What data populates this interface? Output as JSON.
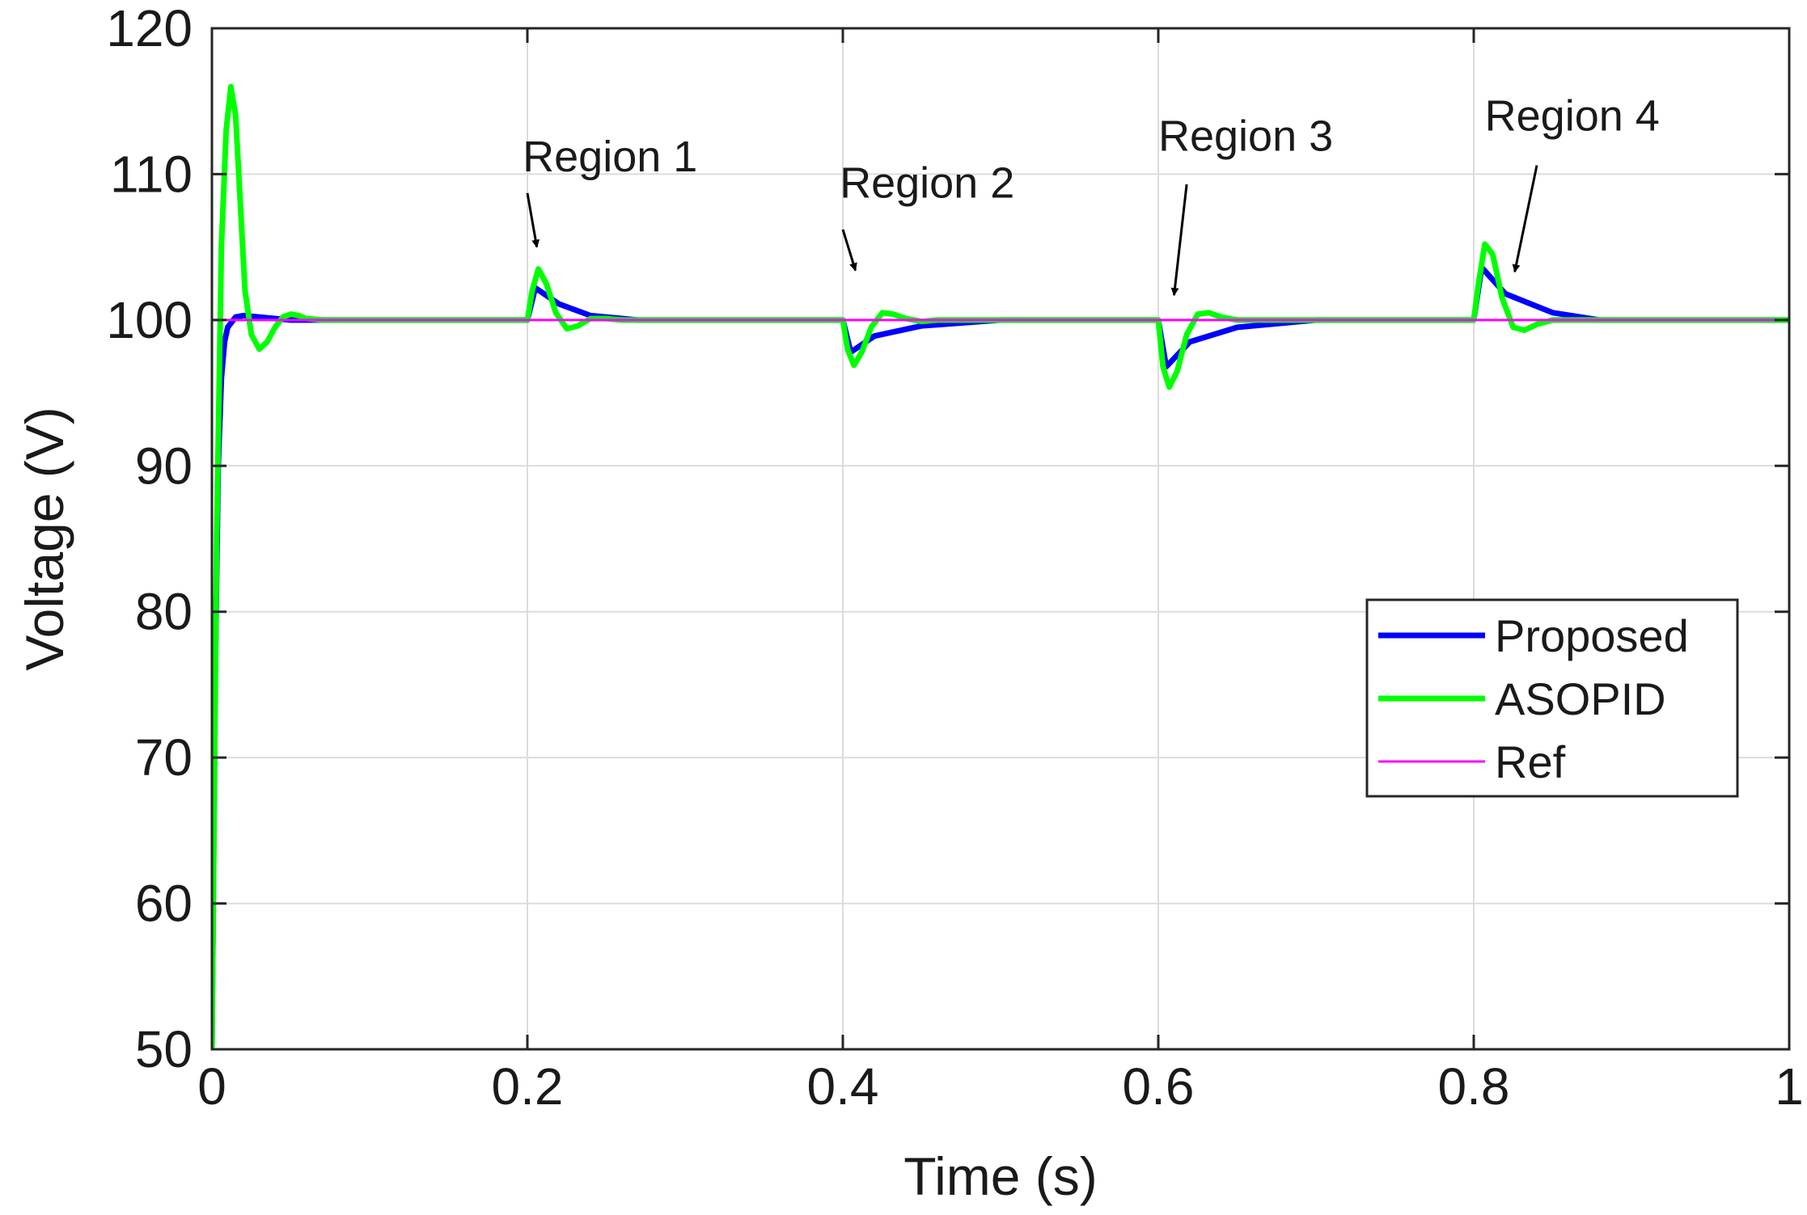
{
  "chart_data": {
    "type": "line",
    "xlabel": "Time (s)",
    "ylabel": "Voltage (V)",
    "xlim": [
      0,
      1
    ],
    "ylim": [
      50,
      120
    ],
    "grid": true,
    "x_ticks": [
      0,
      0.2,
      0.4,
      0.6,
      0.8,
      1
    ],
    "x_tick_labels": [
      "0",
      "0.2",
      "0.4",
      "0.6",
      "0.8",
      "1"
    ],
    "y_ticks": [
      50,
      60,
      70,
      80,
      90,
      100,
      110,
      120
    ],
    "y_tick_labels": [
      "50",
      "60",
      "70",
      "80",
      "90",
      "100",
      "110",
      "120"
    ],
    "legend_position": "right",
    "series": [
      {
        "name": "Proposed",
        "color": "#0000ff",
        "x": [
          0,
          0.002,
          0.004,
          0.006,
          0.008,
          0.01,
          0.015,
          0.02,
          0.03,
          0.05,
          0.08,
          0.2,
          0.2,
          0.205,
          0.22,
          0.24,
          0.27,
          0.4,
          0.4,
          0.405,
          0.42,
          0.45,
          0.5,
          0.6,
          0.6,
          0.605,
          0.62,
          0.65,
          0.7,
          0.8,
          0.8,
          0.805,
          0.82,
          0.85,
          0.88,
          1
        ],
        "values": [
          50,
          75,
          90,
          96,
          98.5,
          99.5,
          100.2,
          100.3,
          100.2,
          100,
          100,
          100,
          100,
          102.2,
          101.1,
          100.3,
          100,
          100,
          100,
          97.8,
          98.9,
          99.6,
          100,
          100,
          100,
          96.8,
          98.5,
          99.5,
          100,
          100,
          100,
          103.6,
          101.8,
          100.5,
          100,
          100
        ]
      },
      {
        "name": "ASOPID",
        "color": "#00ff00",
        "x": [
          0,
          0.003,
          0.006,
          0.009,
          0.012,
          0.015,
          0.018,
          0.021,
          0.025,
          0.03,
          0.035,
          0.04,
          0.045,
          0.05,
          0.055,
          0.06,
          0.07,
          0.08,
          0.2,
          0.2,
          0.203,
          0.207,
          0.212,
          0.218,
          0.225,
          0.232,
          0.24,
          0.25,
          0.26,
          0.4,
          0.4,
          0.403,
          0.407,
          0.412,
          0.418,
          0.425,
          0.432,
          0.44,
          0.45,
          0.46,
          0.6,
          0.6,
          0.603,
          0.607,
          0.612,
          0.618,
          0.625,
          0.632,
          0.64,
          0.65,
          0.66,
          0.8,
          0.8,
          0.803,
          0.807,
          0.812,
          0.818,
          0.825,
          0.832,
          0.84,
          0.85,
          0.86,
          1
        ],
        "values": [
          50,
          85,
          105,
          113,
          116,
          114,
          108,
          102,
          99,
          98,
          98.5,
          99.5,
          100.2,
          100.4,
          100.3,
          100.1,
          100,
          100,
          100,
          100,
          102,
          103.5,
          102.5,
          100.5,
          99.4,
          99.6,
          100.1,
          100.1,
          100,
          100,
          100,
          98,
          96.9,
          97.8,
          99.5,
          100.5,
          100.4,
          100.1,
          99.9,
          100,
          100,
          100,
          96.8,
          95.4,
          96.5,
          99,
          100.4,
          100.5,
          100.2,
          100,
          100,
          100,
          100,
          102.5,
          105.2,
          104.5,
          101.5,
          99.5,
          99.3,
          99.7,
          100,
          100,
          100
        ]
      },
      {
        "name": "Ref",
        "color": "#ff00ff",
        "x": [
          0,
          1
        ],
        "values": [
          100,
          100
        ]
      }
    ],
    "annotations": [
      {
        "text": "Region 1",
        "text_x": 0.197,
        "text_y": 110.2,
        "arrow_from": [
          0.2,
          108.7
        ],
        "arrow_to": [
          0.206,
          105
        ]
      },
      {
        "text": "Region 2",
        "text_x": 0.398,
        "text_y": 108.4,
        "arrow_from": [
          0.4,
          106.2
        ],
        "arrow_to": [
          0.408,
          103.4
        ]
      },
      {
        "text": "Region 3",
        "text_x": 0.6,
        "text_y": 111.6,
        "arrow_from": [
          0.618,
          109.3
        ],
        "arrow_to": [
          0.61,
          101.7
        ]
      },
      {
        "text": "Region 4",
        "text_x": 0.807,
        "text_y": 113,
        "arrow_from": [
          0.84,
          110.6
        ],
        "arrow_to": [
          0.826,
          103.3
        ]
      }
    ]
  }
}
